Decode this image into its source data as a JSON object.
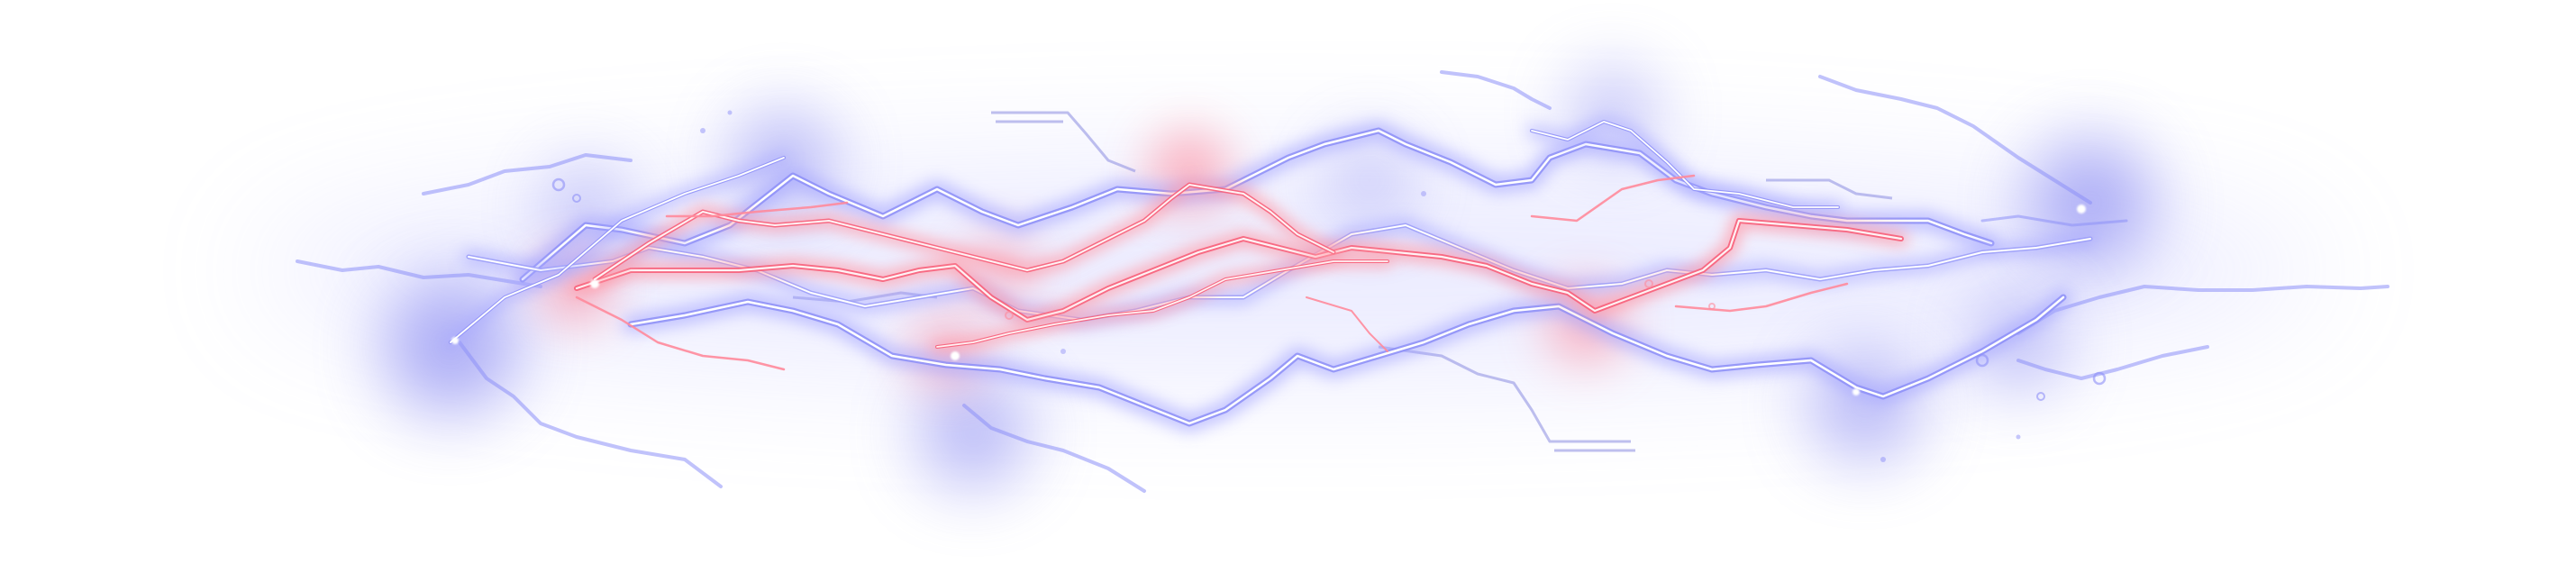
{
  "image": {
    "subject": "electric-lightning-arc",
    "background_color": "#ffffff",
    "colors": {
      "blue_glow": "#7b7cf0",
      "blue_halo": "#a7a8ff",
      "blue_edge": "#8d8ff7",
      "red_glow": "#ff7f92",
      "red_halo": "#ff9eab",
      "red_edge": "#f7607a",
      "circuit": "#8a8de0"
    }
  }
}
